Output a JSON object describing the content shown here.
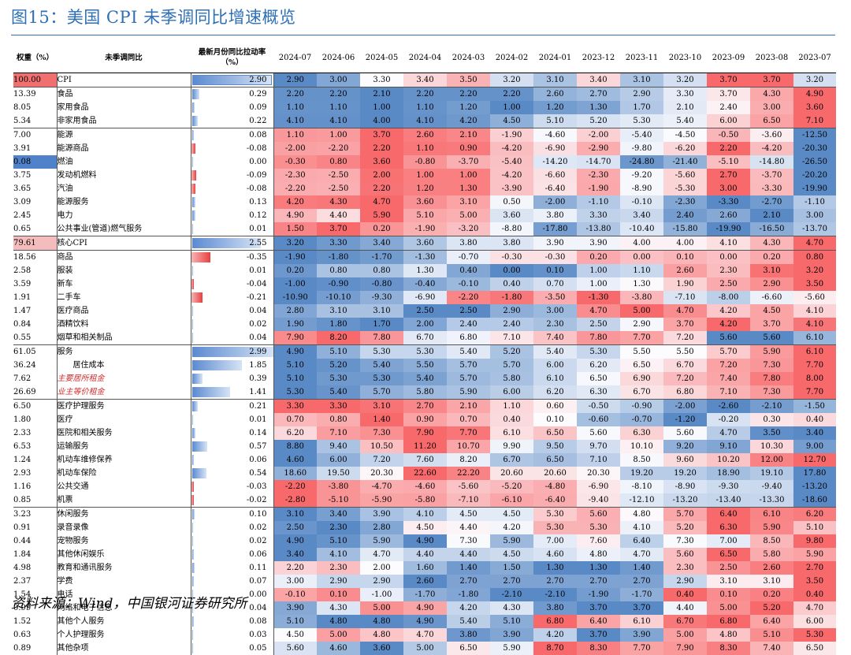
{
  "title": "图15：美国 CPI 未季调同比增速概览",
  "source": "资料来源：Wind，中国银河证券研究所",
  "headers": {
    "weight": "权重（%）",
    "item": "未季调同比",
    "latest": "最新月份同比拉动率（%）",
    "months": [
      "2024-07",
      "2024-06",
      "2024-05",
      "2024-04",
      "2024-03",
      "2024-02",
      "2024-01",
      "2023-12",
      "2023-11",
      "2023-10",
      "2023-09",
      "2023-08",
      "2023-07"
    ]
  },
  "rows": [
    {
      "w": "100.00",
      "n": "CPI",
      "lvl": "cpi",
      "c": "2.90",
      "v": [
        "2.90",
        "3.00",
        "3.30",
        "3.40",
        "3.50",
        "3.20",
        "3.10",
        "3.40",
        "3.10",
        "3.20",
        "3.70",
        "3.70",
        "3.20"
      ]
    },
    {
      "w": "13.39",
      "n": "食品",
      "lvl": "1",
      "c": "0.29",
      "sep": true,
      "v": [
        "2.20",
        "2.20",
        "2.10",
        "2.20",
        "2.20",
        "2.20",
        "2.60",
        "2.70",
        "2.90",
        "3.30",
        "3.70",
        "4.30",
        "4.90"
      ]
    },
    {
      "w": "8.05",
      "n": "家用食品",
      "lvl": "1",
      "c": "0.09",
      "v": [
        "1.10",
        "1.10",
        "1.00",
        "1.10",
        "1.20",
        "1.00",
        "1.20",
        "1.30",
        "1.70",
        "2.10",
        "2.40",
        "3.00",
        "3.60"
      ]
    },
    {
      "w": "5.34",
      "n": "非家用食品",
      "lvl": "1",
      "c": "0.22",
      "v": [
        "4.10",
        "4.10",
        "4.00",
        "4.10",
        "4.20",
        "4.50",
        "5.10",
        "5.20",
        "5.30",
        "5.40",
        "6.00",
        "6.50",
        "7.10"
      ]
    },
    {
      "w": "7.00",
      "n": "能源",
      "lvl": "1",
      "c": "0.08",
      "sep": true,
      "v": [
        "1.10",
        "1.00",
        "3.70",
        "2.60",
        "2.10",
        "-1.90",
        "-4.60",
        "-2.00",
        "-5.40",
        "-4.50",
        "-0.50",
        "-3.60",
        "-12.50"
      ]
    },
    {
      "w": "3.91",
      "n": "能源商品",
      "lvl": "1",
      "c": "-0.08",
      "v": [
        "-2.00",
        "-2.20",
        "2.20",
        "1.10",
        "0.90",
        "-4.20",
        "-6.90",
        "-2.90",
        "-9.80",
        "-6.20",
        "2.20",
        "-4.20",
        "-20.30"
      ]
    },
    {
      "w": "0.08",
      "n": "燃油",
      "lvl": "2",
      "c": "0.00",
      "wsel": true,
      "v": [
        "-0.30",
        "0.80",
        "3.60",
        "-0.80",
        "-3.70",
        "-5.40",
        "-14.20",
        "-14.70",
        "-24.80",
        "-21.40",
        "-5.10",
        "-14.80",
        "-26.50"
      ]
    },
    {
      "w": "3.75",
      "n": "发动机燃料",
      "lvl": "2",
      "c": "-0.09",
      "v": [
        "-2.30",
        "-2.50",
        "2.00",
        "1.00",
        "1.00",
        "-4.20",
        "-6.60",
        "-2.30",
        "-9.20",
        "-5.60",
        "2.70",
        "-3.70",
        "-20.20"
      ]
    },
    {
      "w": "3.65",
      "n": "汽油",
      "lvl": "2",
      "c": "-0.08",
      "v": [
        "-2.20",
        "-2.50",
        "2.20",
        "1.20",
        "1.30",
        "-3.90",
        "-6.40",
        "-1.90",
        "-8.90",
        "-5.30",
        "3.00",
        "-3.30",
        "-19.90"
      ]
    },
    {
      "w": "3.09",
      "n": "能源服务",
      "lvl": "1",
      "c": "0.13",
      "v": [
        "4.20",
        "4.30",
        "4.70",
        "3.60",
        "3.10",
        "0.50",
        "-2.00",
        "-1.10",
        "-0.10",
        "-2.30",
        "-3.30",
        "-2.70",
        "-1.10"
      ]
    },
    {
      "w": "2.45",
      "n": "电力",
      "lvl": "2",
      "c": "0.12",
      "v": [
        "4.90",
        "4.40",
        "5.90",
        "5.10",
        "5.00",
        "3.60",
        "3.80",
        "3.30",
        "3.40",
        "2.40",
        "2.60",
        "2.10",
        "3.00"
      ]
    },
    {
      "w": "0.65",
      "n": "公共事业(管道)燃气服务",
      "lvl": "2",
      "c": "0.01",
      "v": [
        "1.50",
        "3.70",
        "0.20",
        "-1.90",
        "-3.20",
        "-8.80",
        "-17.80",
        "-13.80",
        "-10.40",
        "-15.80",
        "-19.90",
        "-16.50",
        "-13.70"
      ]
    },
    {
      "w": "79.61",
      "n": "核心CPI",
      "lvl": "cpi",
      "c": "2.55",
      "sep": true,
      "v": [
        "3.20",
        "3.30",
        "3.40",
        "3.60",
        "3.80",
        "3.80",
        "3.90",
        "3.90",
        "4.00",
        "4.00",
        "4.10",
        "4.30",
        "4.70"
      ]
    },
    {
      "w": "18.56",
      "n": "商品",
      "lvl": "1",
      "c": "-0.35",
      "sep": true,
      "v": [
        "-1.90",
        "-1.80",
        "-1.70",
        "-1.30",
        "-0.70",
        "-0.30",
        "-0.30",
        "0.20",
        "0.00",
        "0.10",
        "0.00",
        "0.20",
        "0.80"
      ]
    },
    {
      "w": "2.58",
      "n": "服装",
      "lvl": "1",
      "c": "0.01",
      "v": [
        "0.20",
        "0.80",
        "0.80",
        "1.30",
        "0.40",
        "0.00",
        "0.10",
        "1.00",
        "1.10",
        "2.60",
        "2.30",
        "3.10",
        "3.20"
      ]
    },
    {
      "w": "3.59",
      "n": "新车",
      "lvl": "1",
      "c": "-0.04",
      "v": [
        "-1.00",
        "-0.90",
        "-0.80",
        "-0.40",
        "-0.10",
        "0.40",
        "0.70",
        "1.00",
        "1.30",
        "1.90",
        "2.50",
        "2.90",
        "3.50"
      ]
    },
    {
      "w": "1.91",
      "n": "二手车",
      "lvl": "1",
      "c": "-0.21",
      "v": [
        "-10.90",
        "-10.10",
        "-9.30",
        "-6.90",
        "-2.20",
        "-1.80",
        "-3.50",
        "-1.30",
        "-3.80",
        "-7.10",
        "-8.00",
        "-6.60",
        "-5.60"
      ]
    },
    {
      "w": "1.47",
      "n": "医疗商品",
      "lvl": "1",
      "c": "0.04",
      "v": [
        "2.80",
        "3.10",
        "3.10",
        "2.50",
        "2.50",
        "2.90",
        "3.00",
        "4.70",
        "5.00",
        "4.70",
        "4.20",
        "4.50",
        "4.10"
      ]
    },
    {
      "w": "0.84",
      "n": "酒精饮料",
      "lvl": "2",
      "c": "0.02",
      "v": [
        "1.90",
        "1.80",
        "1.70",
        "2.00",
        "2.40",
        "2.40",
        "2.30",
        "2.50",
        "2.90",
        "3.70",
        "4.20",
        "3.70",
        "4.10"
      ]
    },
    {
      "w": "0.55",
      "n": "烟草和相关制品",
      "lvl": "2",
      "c": "0.04",
      "v": [
        "7.90",
        "8.20",
        "7.80",
        "6.70",
        "6.80",
        "7.10",
        "7.40",
        "7.80",
        "7.70",
        "7.20",
        "5.60",
        "5.60",
        "6.10"
      ]
    },
    {
      "w": "61.05",
      "n": "服务",
      "lvl": "1",
      "c": "2.99",
      "sep": true,
      "v": [
        "4.90",
        "5.10",
        "5.30",
        "5.30",
        "5.40",
        "5.20",
        "5.40",
        "5.30",
        "5.50",
        "5.50",
        "5.70",
        "5.90",
        "6.10"
      ]
    },
    {
      "w": "36.24",
      "n": "居住成本",
      "lvl": "1",
      "c": "1.85",
      "ind": true,
      "v": [
        "5.10",
        "5.20",
        "5.40",
        "5.50",
        "5.70",
        "5.70",
        "6.00",
        "6.20",
        "6.50",
        "6.70",
        "7.20",
        "7.30",
        "7.70"
      ]
    },
    {
      "w": "7.62",
      "n": "主要居所租金",
      "lvl": "2",
      "red": true,
      "c": "0.39",
      "v": [
        "5.10",
        "5.30",
        "5.30",
        "5.40",
        "5.70",
        "5.80",
        "6.10",
        "6.50",
        "6.90",
        "7.20",
        "7.40",
        "7.80",
        "8.00"
      ]
    },
    {
      "w": "26.69",
      "n": "业主等价租金",
      "lvl": "2",
      "red": true,
      "c": "1.41",
      "v": [
        "5.30",
        "5.40",
        "5.70",
        "5.80",
        "5.90",
        "6.00",
        "6.20",
        "6.30",
        "6.70",
        "6.80",
        "7.10",
        "7.30",
        "7.70"
      ]
    },
    {
      "w": "6.50",
      "n": "医疗护理服务",
      "lvl": "1",
      "c": "0.21",
      "sep": true,
      "v": [
        "3.30",
        "3.30",
        "3.10",
        "2.70",
        "2.10",
        "1.10",
        "0.60",
        "-0.50",
        "-0.90",
        "-2.00",
        "-2.60",
        "-2.10",
        "-1.50"
      ]
    },
    {
      "w": "1.80",
      "n": "医疗",
      "lvl": "2",
      "c": "0.01",
      "v": [
        "0.70",
        "0.80",
        "1.40",
        "0.90",
        "0.70",
        "0.40",
        "0.10",
        "-0.60",
        "-0.70",
        "-1.20",
        "-0.20",
        "0.30",
        "0.40"
      ]
    },
    {
      "w": "2.33",
      "n": "医院和相关服务",
      "lvl": "2",
      "c": "0.14",
      "v": [
        "6.20",
        "7.10",
        "7.30",
        "7.90",
        "7.70",
        "6.10",
        "6.50",
        "5.60",
        "6.30",
        "5.60",
        "4.70",
        "3.50",
        "3.40"
      ]
    },
    {
      "w": "6.53",
      "n": "运输服务",
      "lvl": "1",
      "c": "0.57",
      "v": [
        "8.80",
        "9.40",
        "10.50",
        "11.20",
        "10.70",
        "9.90",
        "9.50",
        "9.70",
        "10.10",
        "9.20",
        "9.10",
        "10.30",
        "9.00"
      ]
    },
    {
      "w": "1.24",
      "n": "机动车维修保养",
      "lvl": "2",
      "c": "0.06",
      "v": [
        "4.60",
        "6.00",
        "7.20",
        "7.60",
        "8.20",
        "6.70",
        "6.50",
        "7.10",
        "8.50",
        "9.60",
        "10.20",
        "12.00",
        "12.70"
      ]
    },
    {
      "w": "2.93",
      "n": "机动车保险",
      "lvl": "2",
      "c": "0.54",
      "v": [
        "18.60",
        "19.50",
        "20.30",
        "22.60",
        "22.20",
        "20.60",
        "20.60",
        "20.30",
        "19.20",
        "19.20",
        "18.90",
        "19.10",
        "17.80"
      ]
    },
    {
      "w": "1.16",
      "n": "公共交通",
      "lvl": "2",
      "c": "-0.03",
      "v": [
        "-2.20",
        "-3.80",
        "-4.70",
        "-4.60",
        "-5.60",
        "-5.20",
        "-4.80",
        "-6.90",
        "-8.10",
        "-8.90",
        "-9.30",
        "-9.40",
        "-13.20"
      ]
    },
    {
      "w": "0.85",
      "n": "机票",
      "lvl": "2",
      "c": "-0.02",
      "v": [
        "-2.80",
        "-5.10",
        "-5.90",
        "-5.80",
        "-7.10",
        "-6.10",
        "-6.40",
        "-9.40",
        "-12.10",
        "-13.20",
        "-13.40",
        "-13.30",
        "-18.60"
      ]
    },
    {
      "w": "3.23",
      "n": "休闲服务",
      "lvl": "1",
      "c": "0.10",
      "sep": true,
      "v": [
        "3.10",
        "3.40",
        "3.90",
        "4.10",
        "4.50",
        "4.50",
        "5.30",
        "5.60",
        "4.80",
        "5.70",
        "6.40",
        "6.10",
        "6.20"
      ]
    },
    {
      "w": "0.91",
      "n": "录音录像",
      "lvl": "2",
      "c": "0.02",
      "v": [
        "2.50",
        "2.30",
        "2.80",
        "4.50",
        "4.40",
        "4.20",
        "5.30",
        "5.30",
        "4.10",
        "5.20",
        "6.30",
        "5.90",
        "5.10"
      ]
    },
    {
      "w": "0.44",
      "n": "宠物服务",
      "lvl": "2",
      "c": "0.02",
      "v": [
        "4.90",
        "5.10",
        "5.90",
        "4.90",
        "7.30",
        "5.90",
        "7.00",
        "7.60",
        "6.40",
        "7.30",
        "7.00",
        "8.50",
        "9.80"
      ]
    },
    {
      "w": "1.84",
      "n": "其他休闲娱乐",
      "lvl": "2",
      "c": "0.06",
      "v": [
        "3.40",
        "4.10",
        "4.70",
        "4.40",
        "4.40",
        "4.50",
        "4.60",
        "4.80",
        "4.70",
        "5.60",
        "6.50",
        "5.80",
        "5.90"
      ]
    },
    {
      "w": "4.98",
      "n": "教育和通讯服务",
      "lvl": "1",
      "c": "0.11",
      "v": [
        "2.20",
        "2.30",
        "2.00",
        "1.60",
        "1.40",
        "1.50",
        "1.30",
        "1.30",
        "1.40",
        "2.30",
        "2.50",
        "2.60",
        "2.70"
      ]
    },
    {
      "w": "2.37",
      "n": "学费",
      "lvl": "2",
      "c": "0.07",
      "v": [
        "3.00",
        "2.90",
        "2.90",
        "2.60",
        "2.70",
        "2.70",
        "2.70",
        "2.70",
        "2.70",
        "2.90",
        "3.10",
        "3.10",
        "3.50"
      ]
    },
    {
      "w": "1.54",
      "n": "电话",
      "lvl": "2",
      "c": "0.00",
      "v": [
        "-0.10",
        "0.10",
        "-1.00",
        "-1.70",
        "-1.80",
        "-2.10",
        "-2.10",
        "-1.90",
        "-1.70",
        "0.40",
        "0.10",
        "0.20",
        "0.40"
      ]
    },
    {
      "w": "0.99",
      "n": "网络和电子信息",
      "lvl": "2",
      "c": "0.04",
      "v": [
        "3.90",
        "4.30",
        "5.00",
        "4.90",
        "4.20",
        "4.30",
        "3.80",
        "3.70",
        "3.70",
        "4.40",
        "5.00",
        "5.20",
        "4.70"
      ]
    },
    {
      "w": "1.52",
      "n": "其他个人服务",
      "lvl": "1",
      "c": "0.08",
      "v": [
        "5.10",
        "4.80",
        "4.80",
        "4.90",
        "5.40",
        "5.10",
        "6.80",
        "6.40",
        "6.10",
        "6.70",
        "6.80",
        "6.40",
        "6.00"
      ]
    },
    {
      "w": "0.63",
      "n": "个人护理服务",
      "lvl": "2",
      "c": "0.03",
      "v": [
        "4.50",
        "5.00",
        "4.80",
        "4.70",
        "3.80",
        "3.90",
        "4.20",
        "3.70",
        "3.90",
        "5.00",
        "4.80",
        "5.10",
        "5.30"
      ]
    },
    {
      "w": "0.89",
      "n": "其他杂项",
      "lvl": "2",
      "c": "0.05",
      "v": [
        "5.60",
        "4.60",
        "3.60",
        "5.00",
        "6.50",
        "5.90",
        "8.70",
        "8.30",
        "7.70",
        "7.90",
        "8.30",
        "7.40",
        "6.50"
      ]
    }
  ]
}
